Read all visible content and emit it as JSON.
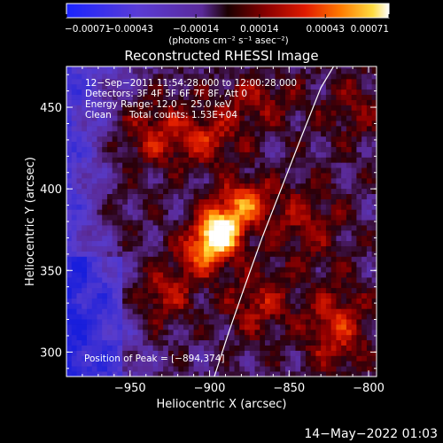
{
  "chart_data": {
    "type": "heatmap",
    "title": "Reconstructed RHESSI Image",
    "xlabel": "Heliocentric X (arcsec)",
    "ylabel": "Heliocentric Y (arcsec)",
    "xlim": [
      -990,
      -795
    ],
    "ylim": [
      285,
      475
    ],
    "x_ticks": [
      {
        "value": -950,
        "label": "−950"
      },
      {
        "value": -900,
        "label": "−900"
      },
      {
        "value": -850,
        "label": "−850"
      },
      {
        "value": -800,
        "label": "−800"
      }
    ],
    "y_ticks": [
      {
        "value": 300,
        "label": "300"
      },
      {
        "value": 350,
        "label": "350"
      },
      {
        "value": 400,
        "label": "400"
      },
      {
        "value": 450,
        "label": "450"
      }
    ],
    "colorbar": {
      "min": -0.00071,
      "max": 0.00071,
      "ticks": [
        {
          "value": -0.00071,
          "label": "−0.00071"
        },
        {
          "value": -0.00043,
          "label": "−0.00043"
        },
        {
          "value": -0.00014,
          "label": "−0.00014"
        },
        {
          "value": 0.00014,
          "label": "0.00014"
        },
        {
          "value": 0.00043,
          "label": "0.00043"
        },
        {
          "value": 0.00071,
          "label": "0.00071"
        }
      ],
      "unit_label": "(photons cm⁻² s⁻¹ asec⁻²)"
    },
    "annotations": [
      "12−Sep−2011 11:54:28.000 to 12:00:28.000",
      "Detectors: 3F 4F 5F 6F 7F 8F, Att 0",
      "Energy Range: 12.0 − 25.0 keV",
      "Clean",
      "Total counts: 1.53E+04"
    ],
    "peak_label": "Position of Peak = [−894,374]",
    "peak": {
      "x": -894,
      "y": 374
    },
    "limb_curve": [
      {
        "x": -897,
        "y": 285
      },
      {
        "x": -888,
        "y": 312
      },
      {
        "x": -878,
        "y": 340
      },
      {
        "x": -867,
        "y": 370
      },
      {
        "x": -855,
        "y": 400
      },
      {
        "x": -843,
        "y": 430
      },
      {
        "x": -830,
        "y": 462
      },
      {
        "x": -822,
        "y": 475
      }
    ],
    "blobs": [
      {
        "x": -894,
        "y": 374,
        "sx": 10,
        "sy": 10,
        "a": 1.0
      },
      {
        "x": -878,
        "y": 392,
        "sx": 12,
        "sy": 10,
        "a": 0.55
      },
      {
        "x": -905,
        "y": 360,
        "sx": 12,
        "sy": 10,
        "a": 0.45
      },
      {
        "x": -940,
        "y": 435,
        "sx": 20,
        "sy": 16,
        "a": 0.4
      },
      {
        "x": -930,
        "y": 335,
        "sx": 15,
        "sy": 12,
        "a": 0.38
      },
      {
        "x": -900,
        "y": 430,
        "sx": 15,
        "sy": 12,
        "a": 0.35
      },
      {
        "x": -820,
        "y": 315,
        "sx": 15,
        "sy": 18,
        "a": 0.45
      },
      {
        "x": -840,
        "y": 380,
        "sx": 18,
        "sy": 18,
        "a": 0.3
      },
      {
        "x": -870,
        "y": 330,
        "sx": 15,
        "sy": 15,
        "a": 0.35
      },
      {
        "x": -960,
        "y": 385,
        "sx": 15,
        "sy": 22,
        "a": 0.25
      },
      {
        "x": -870,
        "y": 455,
        "sx": 18,
        "sy": 12,
        "a": 0.3
      },
      {
        "x": -810,
        "y": 450,
        "sx": 15,
        "sy": 15,
        "a": 0.25
      }
    ],
    "footer_date": "14−May−2022 01:03"
  }
}
